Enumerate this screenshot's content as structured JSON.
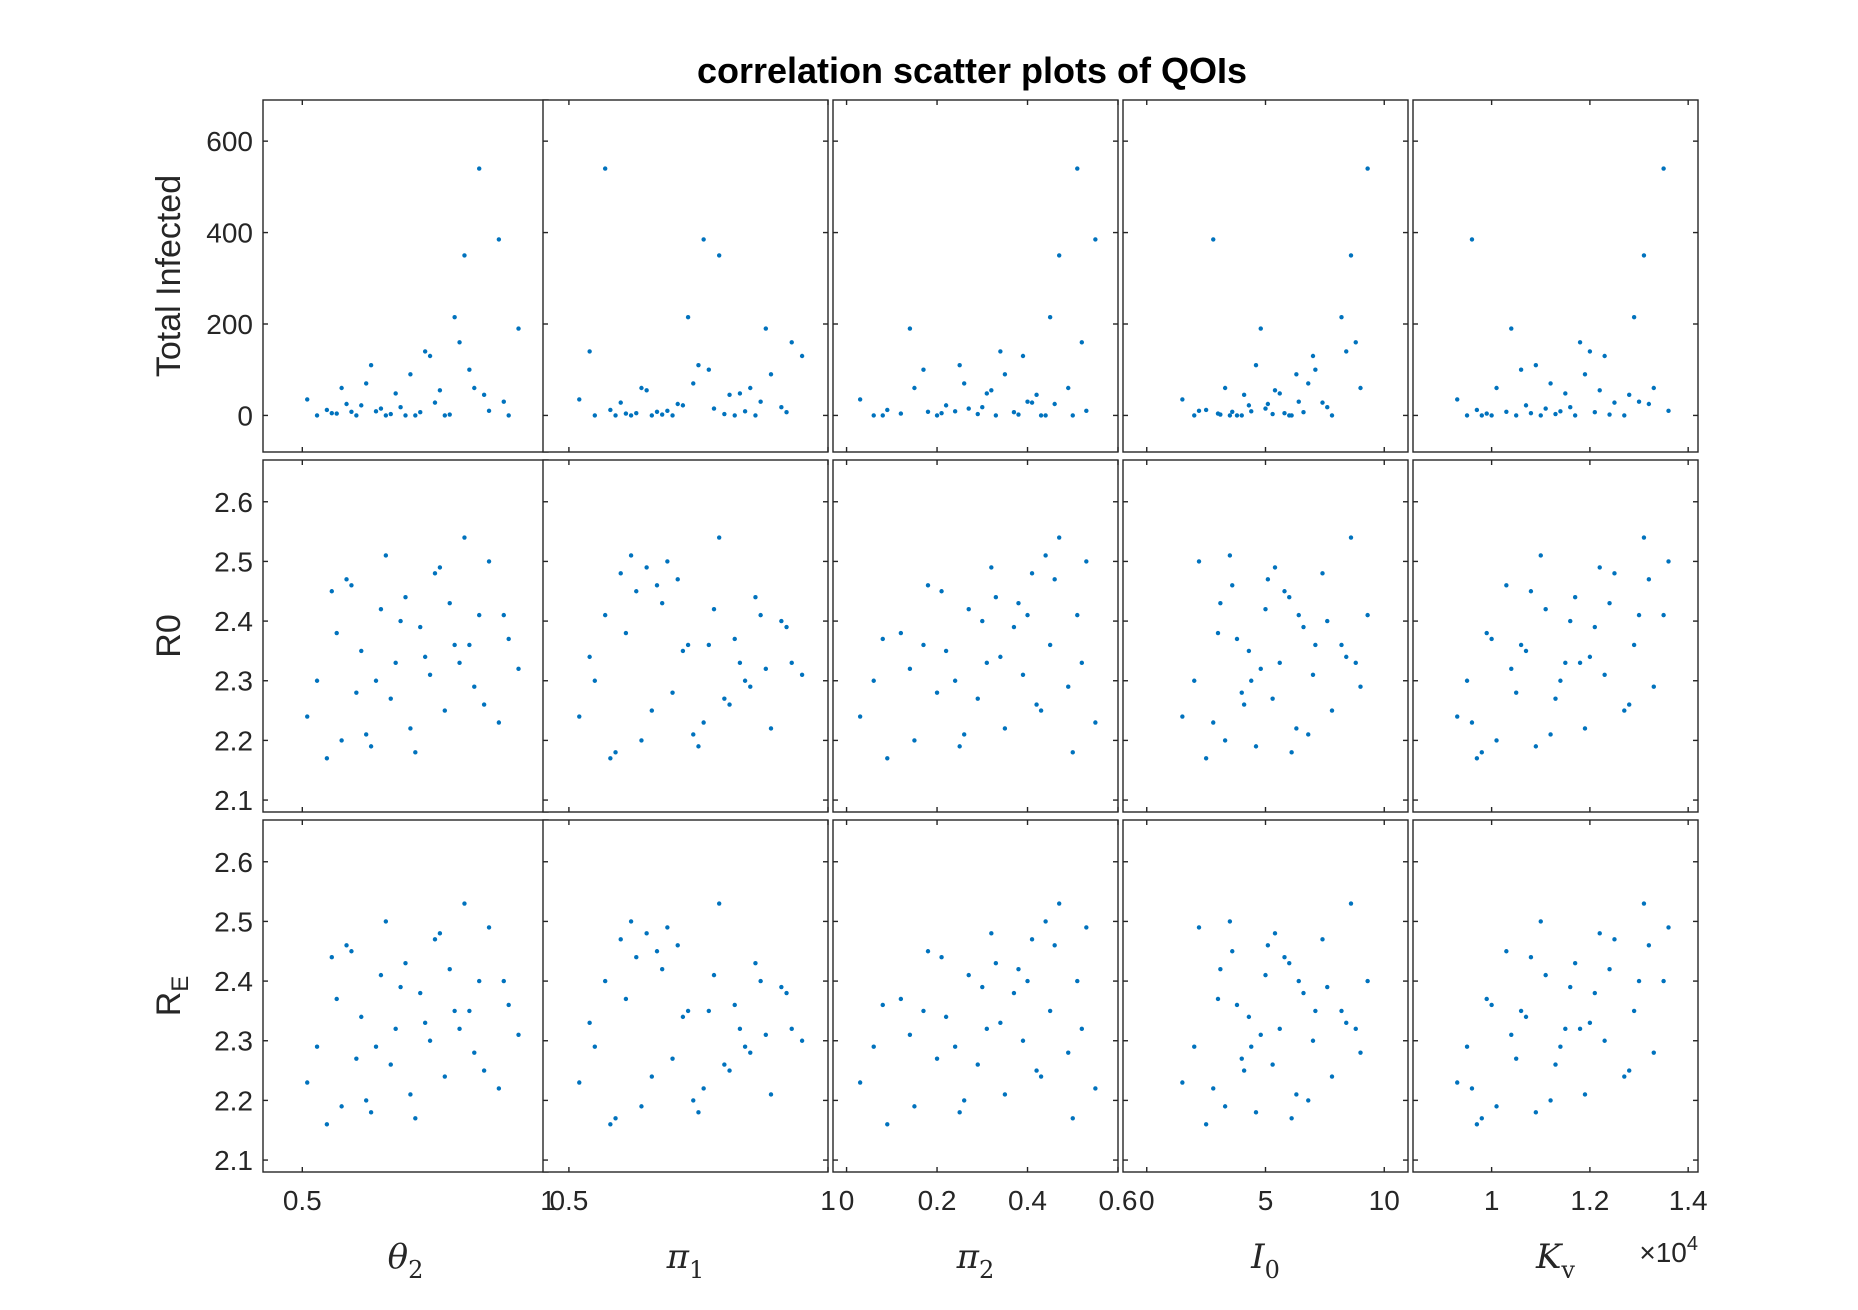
{
  "figure": {
    "title": "correlation scatter plots of QOIs",
    "marker_color": "#0072BD",
    "axis_color": "#262626"
  },
  "chart_data": {
    "type": "scatter",
    "title": "correlation scatter plots of QOIs",
    "grid": false,
    "marker": "point",
    "rows": [
      {
        "id": "total",
        "ylabel": "Total Infected",
        "ylim": [
          -80,
          690
        ],
        "yticks": [
          0,
          200,
          400,
          600
        ]
      },
      {
        "id": "r0",
        "ylabel": "R0",
        "ylim": [
          2.08,
          2.67
        ],
        "yticks": [
          2.1,
          2.2,
          2.3,
          2.4,
          2.5,
          2.6
        ]
      },
      {
        "id": "re",
        "ylabel": "R_E",
        "ylabel_base": "R",
        "ylabel_sub": "E",
        "ylim": [
          2.08,
          2.67
        ],
        "yticks": [
          2.1,
          2.2,
          2.3,
          2.4,
          2.5,
          2.6
        ]
      }
    ],
    "columns": [
      {
        "id": "theta2",
        "xlabel": "θ_2",
        "xlabel_base": "θ",
        "xlabel_sub": "2",
        "xlim": [
          0.42,
          1.0
        ],
        "xticks": [
          0.5,
          1
        ],
        "xtick_labels": [
          "0.5",
          "1"
        ]
      },
      {
        "id": "pi1",
        "xlabel": "π_1",
        "xlabel_base": "π",
        "xlabel_sub": "1",
        "xlim": [
          0.45,
          1.0
        ],
        "xticks": [
          0.5,
          1
        ],
        "xtick_labels": [
          "0.5",
          "1"
        ]
      },
      {
        "id": "pi2",
        "xlabel": "π_2",
        "xlabel_base": "π",
        "xlabel_sub": "2",
        "xlim": [
          -0.03,
          0.6
        ],
        "xticks": [
          0,
          0.2,
          0.4,
          0.6
        ],
        "xtick_labels": [
          "0",
          "0.2",
          "0.4",
          "0.6"
        ]
      },
      {
        "id": "I0",
        "xlabel": "I_0",
        "xlabel_base": "I",
        "xlabel_sub": "0",
        "xlim": [
          -1,
          11
        ],
        "xticks": [
          0,
          5,
          10
        ],
        "xtick_labels": [
          "0",
          "5",
          "10"
        ]
      },
      {
        "id": "Kv",
        "xlabel": "K_v",
        "xlabel_base": "K",
        "xlabel_sub": "v",
        "xlim": [
          0.84,
          1.42
        ],
        "xticks": [
          1,
          1.2,
          1.4
        ],
        "xtick_labels": [
          "1",
          "1.2",
          "1.4"
        ],
        "exponent_base": "×10",
        "exponent_power": "4"
      }
    ],
    "series": [
      {
        "name": "",
        "theta2": [
          0.51,
          0.53,
          0.55,
          0.57,
          0.58,
          0.6,
          0.61,
          0.62,
          0.64,
          0.66,
          0.68,
          0.69,
          0.71,
          0.72,
          0.74,
          0.76,
          0.77,
          0.79,
          0.81,
          0.83,
          0.85,
          0.86,
          0.88,
          0.9,
          0.92,
          0.94,
          0.56,
          0.63,
          0.7,
          0.75,
          0.8,
          0.87,
          0.59,
          0.73,
          0.84,
          0.65,
          0.78,
          0.91,
          0.67,
          0.82
        ],
        "pi1": [
          0.52,
          0.55,
          0.58,
          0.61,
          0.64,
          0.67,
          0.7,
          0.72,
          0.75,
          0.78,
          0.8,
          0.83,
          0.86,
          0.89,
          0.92,
          0.95,
          0.6,
          0.66,
          0.73,
          0.79,
          0.85,
          0.57,
          0.69,
          0.76,
          0.82,
          0.88,
          0.63,
          0.74,
          0.91,
          0.54,
          0.68,
          0.81,
          0.71,
          0.59,
          0.77,
          0.84,
          0.65,
          0.87,
          0.62,
          0.93
        ],
        "pi2": [
          0.03,
          0.06,
          0.09,
          0.12,
          0.15,
          0.18,
          0.2,
          0.22,
          0.25,
          0.27,
          0.29,
          0.31,
          0.33,
          0.35,
          0.37,
          0.39,
          0.41,
          0.43,
          0.45,
          0.47,
          0.49,
          0.51,
          0.53,
          0.55,
          0.08,
          0.14,
          0.21,
          0.26,
          0.3,
          0.34,
          0.38,
          0.42,
          0.46,
          0.5,
          0.17,
          0.24,
          0.32,
          0.4,
          0.44,
          0.52
        ],
        "I0": [
          1.5,
          2,
          2.5,
          3,
          3.3,
          3.6,
          4,
          4.3,
          4.6,
          5,
          5.3,
          5.6,
          6,
          6.3,
          6.6,
          7,
          7.4,
          7.8,
          8.2,
          8.6,
          9,
          9.3,
          2.2,
          2.8,
          3.8,
          4.8,
          5.8,
          6.8,
          7.6,
          8.4,
          3.1,
          4.1,
          5.1,
          6.1,
          7.1,
          4.4,
          5.4,
          6.4,
          3.5,
          8.8
        ],
        "Kv": [
          0.93,
          0.95,
          0.97,
          0.99,
          1.01,
          1.03,
          1.05,
          1.07,
          1.09,
          1.11,
          1.13,
          1.15,
          1.17,
          1.19,
          1.21,
          1.23,
          1.25,
          1.27,
          1.29,
          1.31,
          1.33,
          1.35,
          1.36,
          0.96,
          1,
          1.04,
          1.08,
          1.12,
          1.16,
          1.2,
          1.24,
          1.28,
          1.32,
          0.98,
          1.06,
          1.14,
          1.22,
          1.3,
          1.1,
          1.18
        ],
        "total": [
          35,
          0,
          12,
          4,
          60,
          8,
          0,
          22,
          110,
          15,
          3,
          48,
          0,
          90,
          7,
          130,
          28,
          0,
          215,
          350,
          60,
          540,
          10,
          385,
          0,
          190,
          5,
          70,
          18,
          140,
          2,
          45,
          25,
          0,
          100,
          9,
          55,
          30,
          0,
          160
        ],
        "r0": [
          2.24,
          2.3,
          2.17,
          2.38,
          2.2,
          2.46,
          2.28,
          2.35,
          2.19,
          2.42,
          2.27,
          2.33,
          2.44,
          2.22,
          2.39,
          2.31,
          2.48,
          2.25,
          2.36,
          2.54,
          2.29,
          2.41,
          2.5,
          2.23,
          2.37,
          2.32,
          2.45,
          2.21,
          2.4,
          2.34,
          2.43,
          2.26,
          2.47,
          2.18,
          2.36,
          2.3,
          2.49,
          2.41,
          2.51,
          2.33
        ],
        "re": [
          2.23,
          2.29,
          2.16,
          2.37,
          2.19,
          2.45,
          2.27,
          2.34,
          2.18,
          2.41,
          2.26,
          2.32,
          2.43,
          2.21,
          2.38,
          2.3,
          2.47,
          2.24,
          2.35,
          2.53,
          2.28,
          2.4,
          2.49,
          2.22,
          2.36,
          2.31,
          2.44,
          2.2,
          2.39,
          2.33,
          2.42,
          2.25,
          2.46,
          2.17,
          2.35,
          2.29,
          2.48,
          2.4,
          2.5,
          2.32
        ]
      }
    ]
  }
}
